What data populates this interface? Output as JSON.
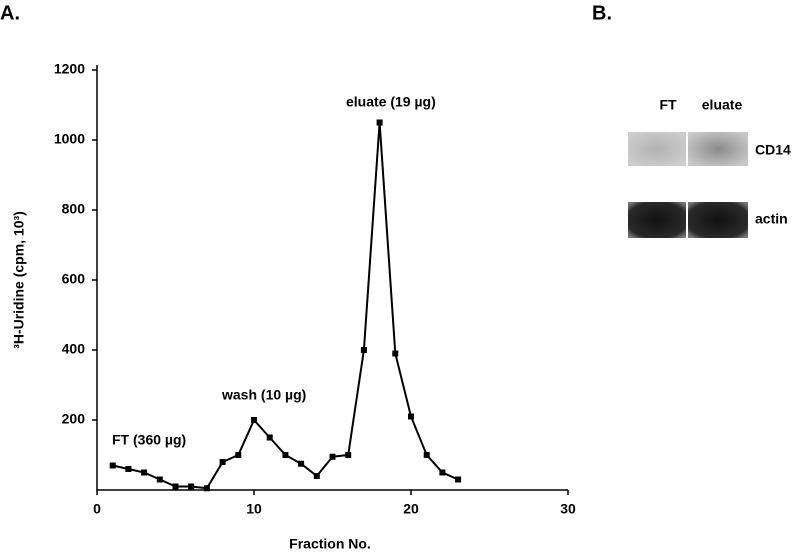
{
  "panels": {
    "a": "A.",
    "b": "B."
  },
  "chart_data": {
    "type": "line",
    "x_label": "Fraction No.",
    "y_label": "³H-Uridine (cpm, 10³)",
    "x": [
      1,
      2,
      3,
      4,
      5,
      6,
      7,
      8,
      9,
      10,
      11,
      12,
      13,
      14,
      15,
      16,
      17,
      18,
      19,
      20,
      21,
      22,
      23
    ],
    "values": [
      70,
      60,
      50,
      30,
      10,
      10,
      5,
      80,
      100,
      200,
      150,
      100,
      75,
      40,
      95,
      100,
      400,
      1050,
      390,
      210,
      100,
      50,
      30
    ],
    "color": "#000000",
    "xlim": [
      0,
      30
    ],
    "xticks": [
      0,
      10,
      20,
      30
    ],
    "ylim": [
      0,
      1200
    ],
    "yticks": [
      200,
      400,
      600,
      800,
      1000,
      1200
    ],
    "grid": false,
    "annotations": [
      "FT (360 µg)",
      "wash (10 µg)",
      "eluate (19 µg)"
    ]
  },
  "blot": {
    "lanes": [
      "FT",
      "eluate"
    ],
    "rows": [
      "CD14",
      "actin"
    ]
  }
}
